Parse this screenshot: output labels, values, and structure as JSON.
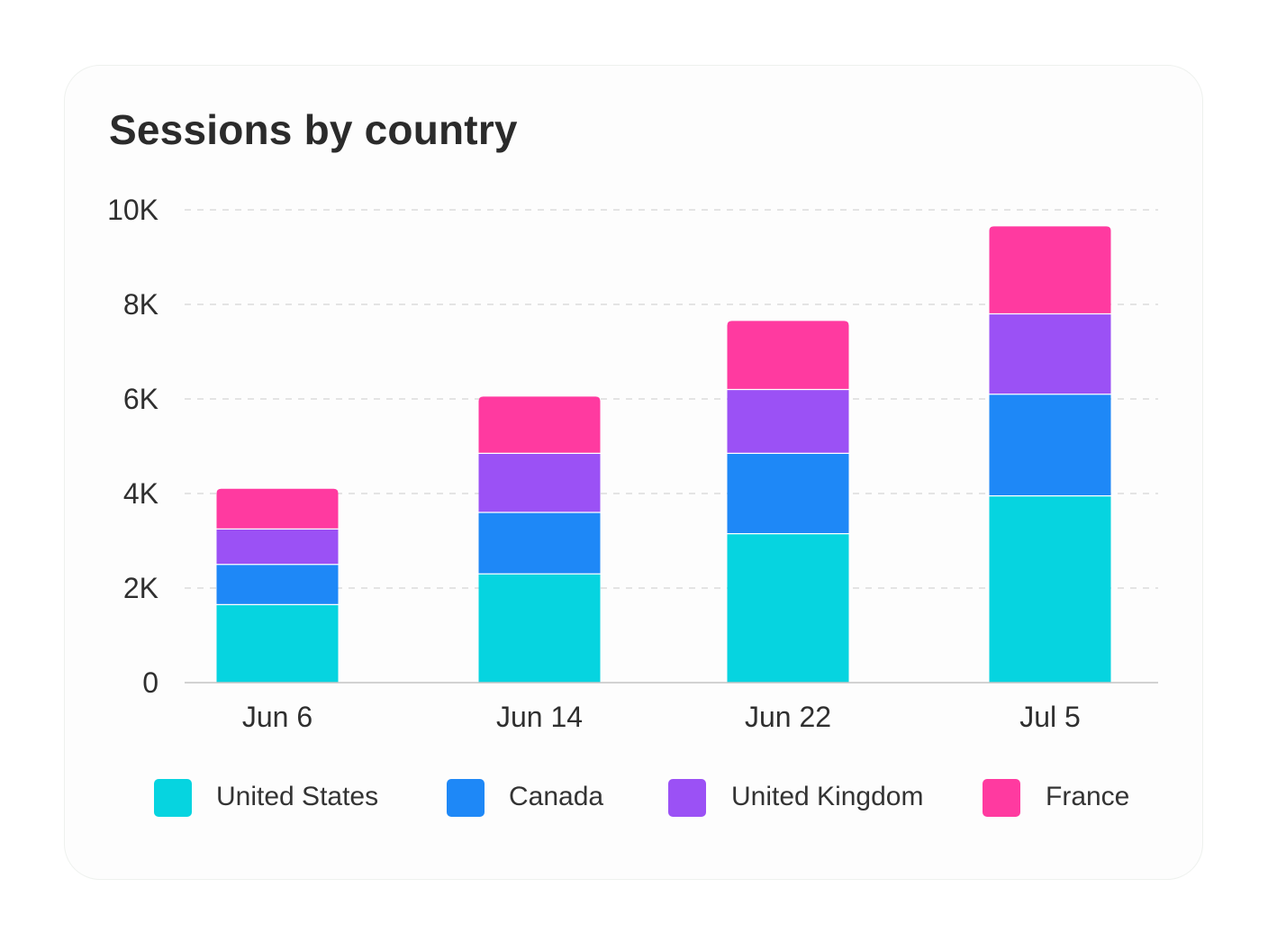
{
  "chart_data": {
    "type": "bar",
    "stacked": true,
    "title": "Sessions by country",
    "xlabel": "",
    "ylabel": "",
    "categories": [
      "Jun 6",
      "Jun 14",
      "Jun 22",
      "Jul 5"
    ],
    "series": [
      {
        "name": "United States",
        "color": "#06d4e0",
        "values": [
          1650,
          2300,
          3150,
          3950
        ]
      },
      {
        "name": "Canada",
        "color": "#1e88f7",
        "values": [
          850,
          1300,
          1700,
          2150
        ]
      },
      {
        "name": "United Kingdom",
        "color": "#9b51f5",
        "values": [
          750,
          1250,
          1350,
          1700
        ]
      },
      {
        "name": "France",
        "color": "#ff3aa0",
        "values": [
          850,
          1200,
          1450,
          1850
        ]
      }
    ],
    "ylim": [
      0,
      10000
    ],
    "yticks": [
      0,
      2000,
      4000,
      6000,
      8000,
      10000
    ],
    "ytick_labels": [
      "0",
      "2K",
      "4K",
      "6K",
      "8K",
      "10K"
    ],
    "grid": true,
    "legend_position": "bottom"
  }
}
